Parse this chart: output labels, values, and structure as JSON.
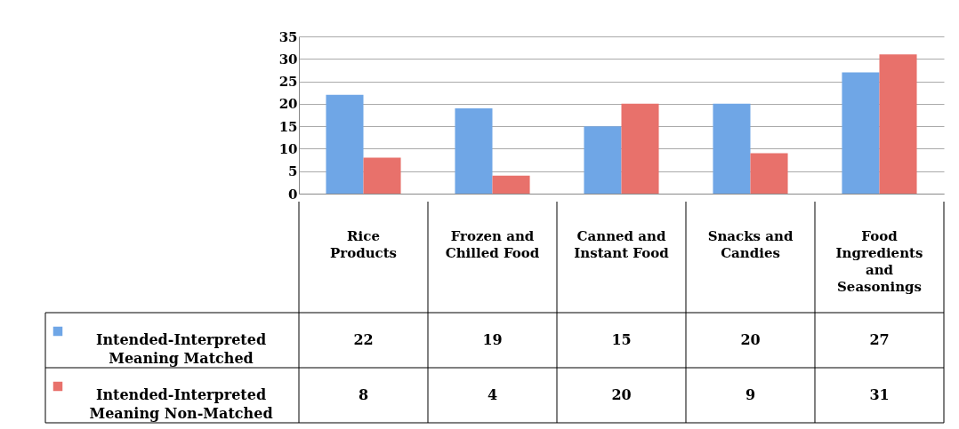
{
  "chart_data": {
    "type": "bar",
    "categories": [
      "Rice Products",
      "Frozen and Chilled Food",
      "Canned and Instant Food",
      "Snacks and Candies",
      "Food Ingredients and Seasonings"
    ],
    "series": [
      {
        "name": "Intended-Interpreted Meaning Matched",
        "color": "#6fa6e6",
        "values": [
          22,
          19,
          15,
          20,
          27
        ]
      },
      {
        "name": "Intended-Interpreted Meaning Non-Matched",
        "color": "#e8716b",
        "values": [
          8,
          4,
          20,
          9,
          31
        ]
      }
    ],
    "ylim": [
      0,
      35
    ],
    "yticks": [
      0,
      5,
      10,
      15,
      20,
      25,
      30,
      35
    ],
    "grid": "y",
    "legend": "bottom left",
    "data_labels": true
  }
}
